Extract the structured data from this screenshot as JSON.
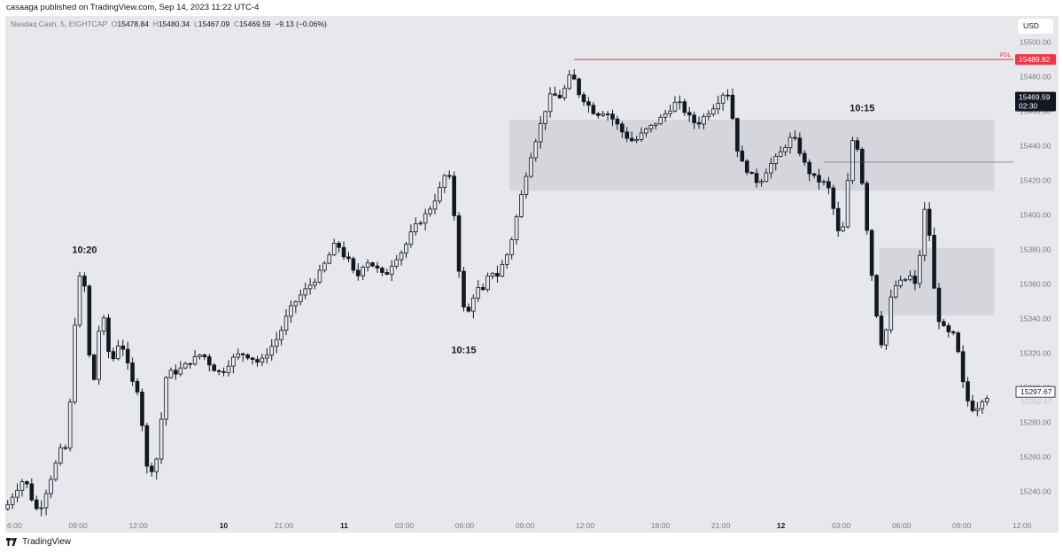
{
  "publish_line": "casaaga published on TradingView.com, Sep 14, 2023 11:22 UTC-4",
  "legend": {
    "symbol": "Nasdaq Cash, 5, EIGHTCAP",
    "o_label": "O",
    "o": "15478.84",
    "h_label": "H",
    "h": "15480.34",
    "l_label": "L",
    "l": "15467.09",
    "c_label": "C",
    "c": "15469.59",
    "change": "−9.13 (−0.06%)"
  },
  "currency": "USD",
  "brand": "TradingView",
  "colors": {
    "background": "#e6e8eb",
    "candle": "#131722",
    "zone": "#d4d6db",
    "pdl": "#f23645",
    "price_label_dark": "#131722"
  },
  "chart_data": {
    "type": "candlestick",
    "y_axis": {
      "ticks": [
        "15500.00",
        "15480.00",
        "15460.00",
        "15440.00",
        "15420.00",
        "15400.00",
        "15380.00",
        "15360.00",
        "15340.00",
        "15320.00",
        "15300.00",
        "15280.00",
        "15260.00",
        "15240.00"
      ],
      "range": [
        15225,
        15515
      ]
    },
    "x_axis": {
      "ticks": [
        "6:00",
        "09:00",
        "12:00",
        "10",
        "21:00",
        "11",
        "03:00",
        "06:00",
        "09:00",
        "12:00",
        "18:00",
        "21:00",
        "12",
        "03:00",
        "06:00",
        "09:00",
        "12:00"
      ],
      "bold_ticks": [
        "10",
        "11",
        "12"
      ]
    },
    "price_path": [
      [
        0,
        15230
      ],
      [
        2,
        15240
      ],
      [
        4,
        15248
      ],
      [
        6,
        15232
      ],
      [
        7,
        15228
      ],
      [
        10,
        15252
      ],
      [
        12,
        15268
      ],
      [
        13,
        15262
      ],
      [
        14,
        15320
      ],
      [
        15,
        15355
      ],
      [
        16,
        15372
      ],
      [
        17,
        15345
      ],
      [
        18,
        15292
      ],
      [
        19,
        15318
      ],
      [
        20,
        15348
      ],
      [
        21,
        15330
      ],
      [
        22,
        15312
      ],
      [
        23,
        15322
      ],
      [
        24,
        15328
      ],
      [
        25,
        15318
      ],
      [
        27,
        15298
      ],
      [
        28,
        15300
      ],
      [
        29,
        15258
      ],
      [
        30,
        15250
      ],
      [
        32,
        15262
      ],
      [
        33,
        15302
      ],
      [
        34,
        15310
      ],
      [
        35,
        15308
      ],
      [
        37,
        15312
      ],
      [
        39,
        15316
      ],
      [
        41,
        15320
      ],
      [
        43,
        15312
      ],
      [
        45,
        15308
      ],
      [
        47,
        15316
      ],
      [
        49,
        15320
      ],
      [
        51,
        15318
      ],
      [
        53,
        15314
      ],
      [
        55,
        15322
      ],
      [
        57,
        15330
      ],
      [
        59,
        15344
      ],
      [
        61,
        15352
      ],
      [
        63,
        15358
      ],
      [
        65,
        15364
      ],
      [
        67,
        15374
      ],
      [
        69,
        15385
      ],
      [
        70,
        15378
      ],
      [
        72,
        15372
      ],
      [
        73,
        15362
      ],
      [
        75,
        15374
      ],
      [
        77,
        15370
      ],
      [
        79,
        15364
      ],
      [
        81,
        15374
      ],
      [
        83,
        15380
      ],
      [
        85,
        15392
      ],
      [
        87,
        15398
      ],
      [
        89,
        15406
      ],
      [
        91,
        15418
      ],
      [
        92,
        15427
      ],
      [
        93,
        15415
      ],
      [
        94,
        15385
      ],
      [
        95,
        15352
      ],
      [
        96,
        15340
      ],
      [
        97,
        15348
      ],
      [
        98,
        15358
      ],
      [
        100,
        15355
      ],
      [
        101,
        15372
      ],
      [
        102,
        15362
      ],
      [
        103,
        15368
      ],
      [
        105,
        15380
      ],
      [
        107,
        15405
      ],
      [
        109,
        15430
      ],
      [
        111,
        15448
      ],
      [
        113,
        15465
      ],
      [
        114,
        15472
      ],
      [
        115,
        15466
      ],
      [
        117,
        15475
      ],
      [
        118,
        15484
      ],
      [
        119,
        15472
      ],
      [
        121,
        15465
      ],
      [
        123,
        15458
      ],
      [
        125,
        15460
      ],
      [
        127,
        15454
      ],
      [
        129,
        15446
      ],
      [
        131,
        15442
      ],
      [
        133,
        15448
      ],
      [
        135,
        15452
      ],
      [
        137,
        15457
      ],
      [
        139,
        15463
      ],
      [
        140,
        15466
      ],
      [
        142,
        15458
      ],
      [
        144,
        15452
      ],
      [
        146,
        15458
      ],
      [
        148,
        15464
      ],
      [
        150,
        15472
      ],
      [
        151,
        15468
      ],
      [
        152,
        15444
      ],
      [
        153,
        15432
      ],
      [
        155,
        15424
      ],
      [
        157,
        15418
      ],
      [
        159,
        15428
      ],
      [
        161,
        15434
      ],
      [
        163,
        15442
      ],
      [
        164,
        15446
      ],
      [
        165,
        15440
      ],
      [
        167,
        15426
      ],
      [
        169,
        15420
      ],
      [
        171,
        15418
      ],
      [
        172,
        15412
      ],
      [
        173,
        15395
      ],
      [
        174,
        15385
      ],
      [
        175,
        15400
      ],
      [
        176,
        15438
      ],
      [
        177,
        15448
      ],
      [
        178,
        15430
      ],
      [
        179,
        15408
      ],
      [
        180,
        15376
      ],
      [
        181,
        15355
      ],
      [
        182,
        15330
      ],
      [
        183,
        15322
      ],
      [
        184,
        15345
      ],
      [
        185,
        15358
      ],
      [
        187,
        15362
      ],
      [
        189,
        15365
      ],
      [
        190,
        15354
      ],
      [
        191,
        15400
      ],
      [
        192,
        15405
      ],
      [
        193,
        15372
      ],
      [
        194,
        15342
      ],
      [
        196,
        15332
      ],
      [
        198,
        15330
      ],
      [
        199,
        15310
      ],
      [
        200,
        15295
      ],
      [
        201,
        15290
      ],
      [
        202,
        15286
      ],
      [
        203,
        15292
      ],
      [
        204,
        15295
      ]
    ],
    "zones": [
      {
        "from": 104.5,
        "to": 205.5,
        "low": 15414,
        "high": 15455
      },
      {
        "from": 181.5,
        "to": 205.5,
        "low": 15342,
        "high": 15381
      }
    ],
    "horizontal_lines": [
      {
        "label": "PDL",
        "value": 15489.82,
        "from": 118
      },
      {
        "value": 15430.5,
        "from": 170
      }
    ],
    "annotations": [
      {
        "text": "10:20",
        "bar": 16,
        "value": 15378
      },
      {
        "text": "10:15",
        "bar": 95,
        "value": 15320
      },
      {
        "text": "10:15",
        "bar": 178,
        "value": 15460
      }
    ],
    "price_labels": {
      "pdl_value": "15489.82",
      "current_value": "15469.59",
      "current_time": "02:30",
      "last_value": "15297.67",
      "last_ghost": "15292.67"
    }
  }
}
